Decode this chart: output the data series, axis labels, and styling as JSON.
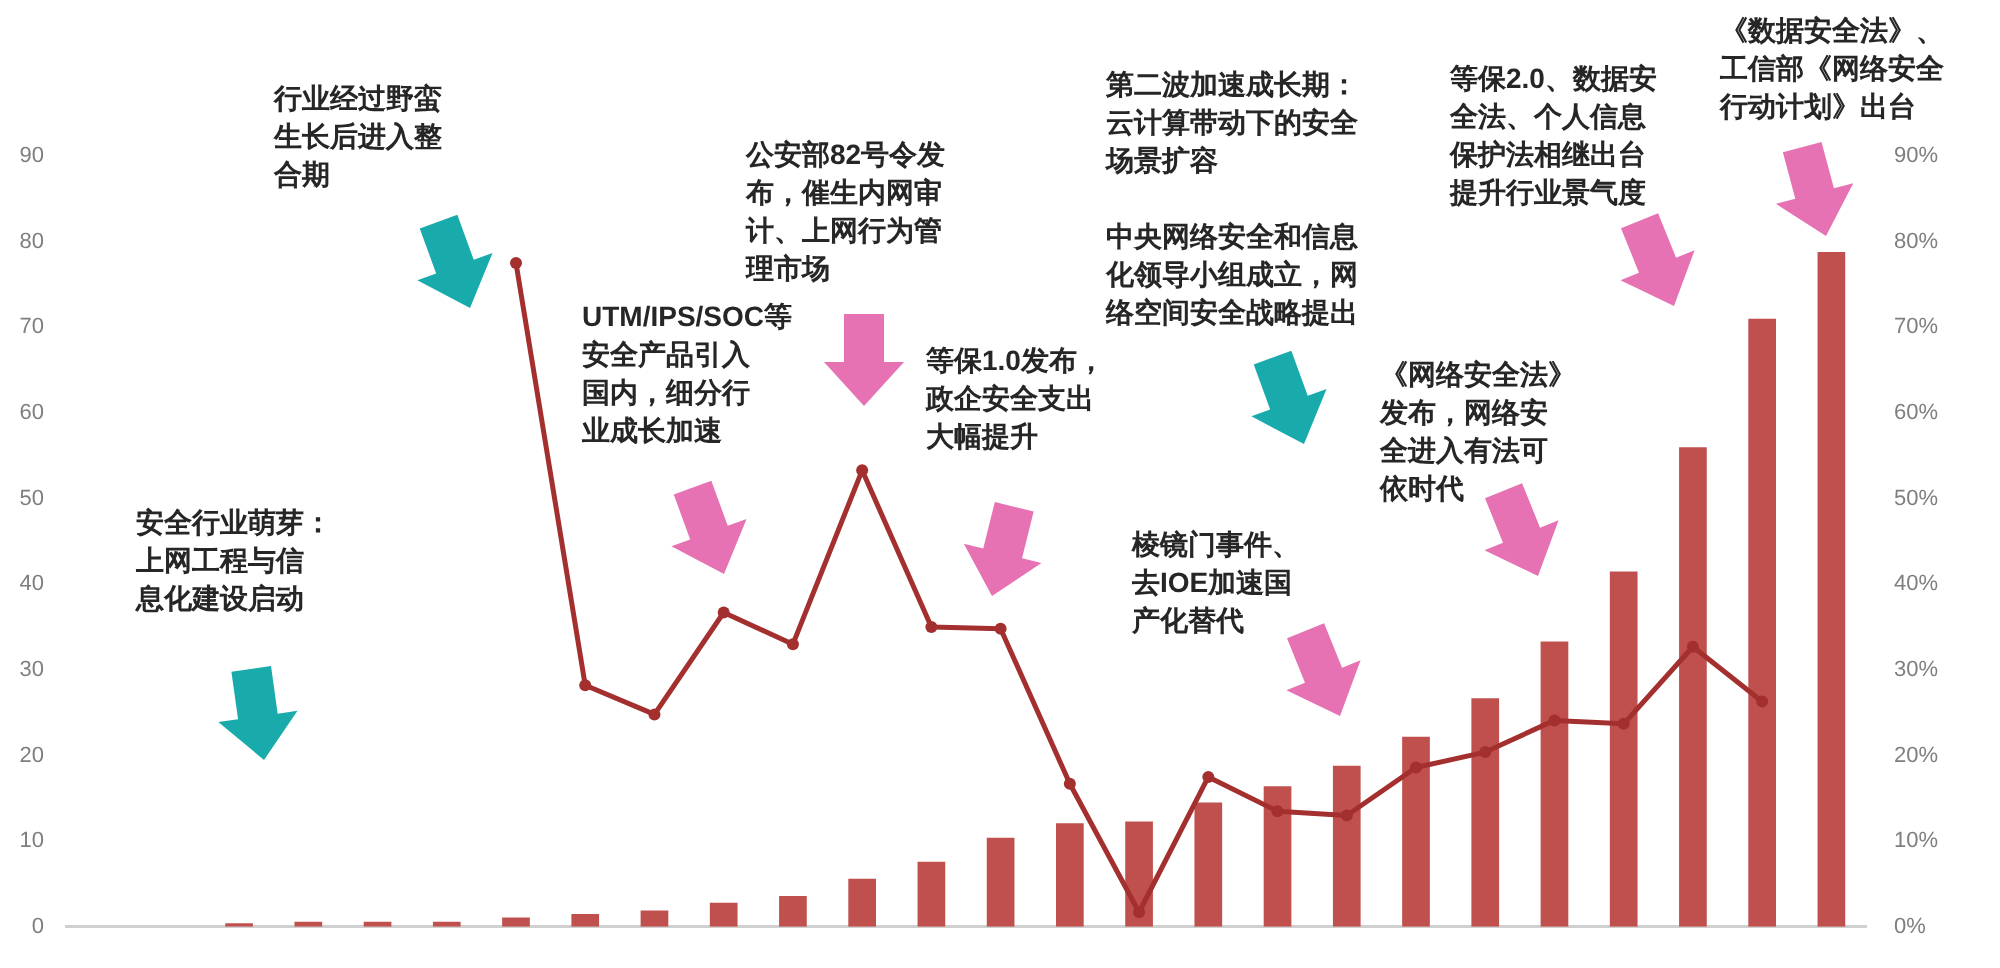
{
  "chart_data": {
    "type": "bar",
    "categories": [
      null,
      null,
      null,
      null,
      null,
      null,
      null,
      null,
      null,
      null,
      null,
      null,
      null,
      null,
      null,
      null,
      null,
      null,
      null,
      null,
      null,
      null,
      null,
      null,
      null,
      null
    ],
    "series": [
      {
        "type": "bar",
        "color": "#c0504d",
        "values": [
          null,
          null,
          0.4,
          0.6,
          0.6,
          0.6,
          1.1,
          1.5,
          1.9,
          2.8,
          3.6,
          5.6,
          7.6,
          10.4,
          12.1,
          12.3,
          14.5,
          16.4,
          18.8,
          22.2,
          26.7,
          33.3,
          41.5,
          56,
          71,
          78.8
        ]
      },
      {
        "type": "line",
        "axis": "y2",
        "color": "#a3302f",
        "values": [
          null,
          null,
          null,
          null,
          null,
          null,
          77.5,
          28.2,
          24.8,
          36.7,
          33.0,
          53.3,
          35.0,
          34.8,
          16.7,
          1.7,
          17.5,
          13.5,
          13.0,
          18.6,
          20.4,
          24.1,
          23.7,
          32.7,
          26.3,
          null
        ]
      }
    ],
    "ylim": [
      0,
      90
    ],
    "yticks": [
      0,
      10,
      20,
      30,
      40,
      50,
      60,
      70,
      80,
      90
    ],
    "y2lim": [
      0,
      90
    ],
    "y2ticks": [
      {
        "value": 0,
        "label": "0%"
      },
      {
        "value": 10,
        "label": "10%"
      },
      {
        "value": 20,
        "label": "20%"
      },
      {
        "value": 30,
        "label": "30%"
      },
      {
        "value": 40,
        "label": "40%"
      },
      {
        "value": 50,
        "label": "50%"
      },
      {
        "value": 60,
        "label": "60%"
      },
      {
        "value": 70,
        "label": "70%"
      },
      {
        "value": 80,
        "label": "80%"
      },
      {
        "value": 90,
        "label": "90%"
      }
    ],
    "marker": "circle",
    "grid": false,
    "legend": false,
    "annotations": [
      "安全行业萌芽：上网工程与信息化建设启动",
      "行业经过野蛮生长后进入整合期",
      "UTM/IPS/SOC等安全产品引入国内，细分行业成长加速",
      "公安部82号令发布，催生内网审计、上网行为管理市场",
      "等保1.0发布，政企安全支出大幅提升",
      "第二波加速成长期：云计算带动下的安全场景扩容",
      "中央网络安全和信息化领导小组成立，网络空间安全战略提出",
      "棱镜门事件、去IOE加速国产化替代",
      "《网络安全法》发布，网络安全进入有法可依时代",
      "等保2.0、数据安全法、个人信息保护法相继出台提升行业景气度",
      "《数据安全法》、工信部《网络安全行动计划》出台"
    ]
  }
}
